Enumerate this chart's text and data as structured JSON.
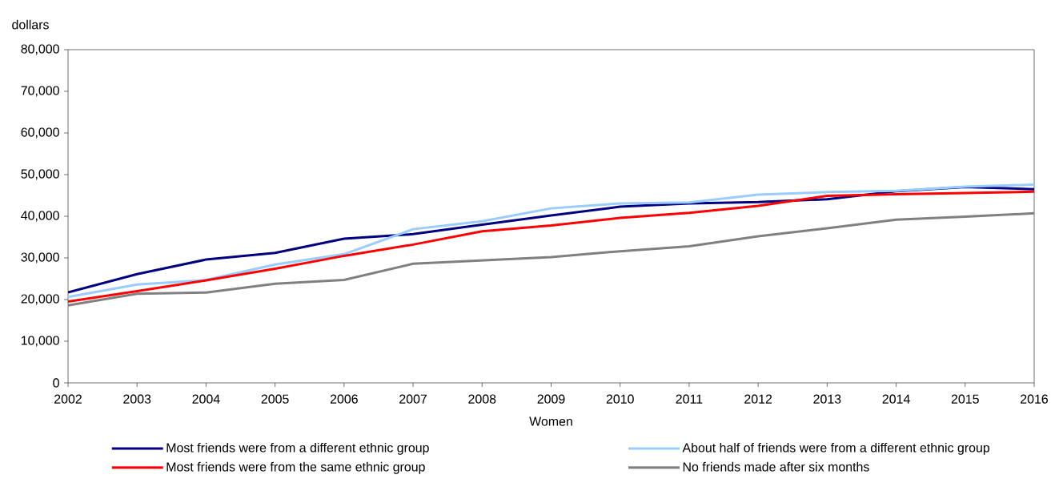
{
  "chart_data": {
    "type": "line",
    "xlabel": "Women",
    "ylabel": "dollars",
    "x": [
      2002,
      2003,
      2004,
      2005,
      2006,
      2007,
      2008,
      2009,
      2010,
      2011,
      2012,
      2013,
      2014,
      2015,
      2016
    ],
    "series": [
      {
        "name": "Most friends were from a different ethnic group",
        "color": "#000080",
        "values": [
          21700,
          26100,
          29600,
          31200,
          34600,
          35700,
          38000,
          40200,
          42300,
          43100,
          43400,
          44100,
          46000,
          47000,
          46500
        ]
      },
      {
        "name": "About half of friends were from a different ethnic group",
        "color": "#99ccff",
        "values": [
          20600,
          23600,
          24700,
          28400,
          30900,
          36900,
          38800,
          41900,
          43100,
          43300,
          45200,
          45800,
          46100,
          47100,
          47600
        ]
      },
      {
        "name": "Most friends were from the same ethnic group",
        "color": "#ff0000",
        "values": [
          19500,
          22000,
          24600,
          27400,
          30500,
          33200,
          36400,
          37800,
          39600,
          40800,
          42500,
          44900,
          45300,
          45600,
          45900
        ]
      },
      {
        "name": "No friends made after six months",
        "color": "#808080",
        "values": [
          18600,
          21400,
          21700,
          23800,
          24700,
          28600,
          29400,
          30200,
          31600,
          32800,
          35200,
          37100,
          39200,
          39900,
          40700
        ]
      }
    ],
    "xlim": [
      2002,
      2016
    ],
    "ylim": [
      0,
      80000
    ],
    "xticks": [
      2002,
      2003,
      2004,
      2005,
      2006,
      2007,
      2008,
      2009,
      2010,
      2011,
      2012,
      2013,
      2014,
      2015,
      2016
    ],
    "yticks": [
      0,
      {
        "value": 10000,
        "label": "10,000"
      },
      {
        "value": 20000,
        "label": "20,000"
      },
      {
        "value": 30000,
        "label": "30,000"
      },
      {
        "value": 40000,
        "label": "40,000"
      },
      {
        "value": 50000,
        "label": "50,000"
      },
      {
        "value": 60000,
        "label": "60,000"
      },
      {
        "value": 70000,
        "label": "70,000"
      },
      {
        "value": 80000,
        "label": "80,000"
      }
    ],
    "grid": false,
    "legend": "bottom",
    "marker": "none",
    "line_style": "solid"
  }
}
